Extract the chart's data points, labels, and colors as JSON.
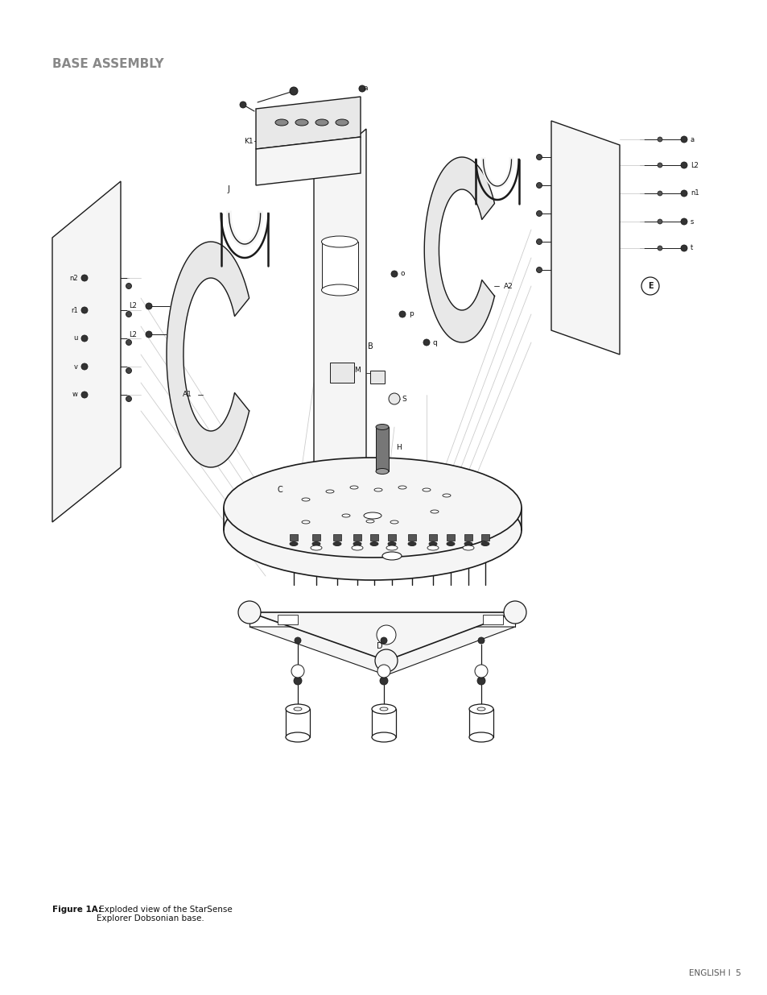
{
  "title": "BASE ASSEMBLY",
  "figure_caption_bold": "Figure 1A:",
  "figure_caption_rest": " Exploded view of the StarSense\nExplorer Dobsonian base.",
  "footer_text": "ENGLISH I  5",
  "bg_color": "#ffffff",
  "title_color": "#888888",
  "line_color": "#1a1a1a",
  "guide_color": "#cccccc",
  "fill_light": "#f5f5f5",
  "fill_mid": "#e8e8e8",
  "fill_dark": "#555555"
}
